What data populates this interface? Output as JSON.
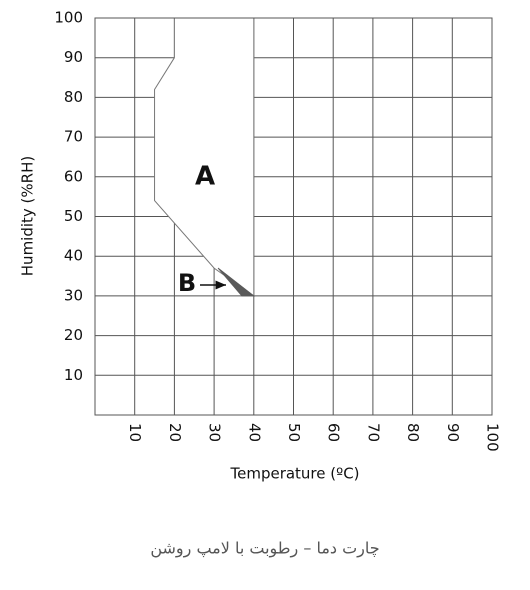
{
  "chart_data": {
    "type": "region",
    "xlabel": "Temperature (ºC)",
    "ylabel": "Humidity (%RH)",
    "xlim": [
      0,
      100
    ],
    "ylim": [
      0,
      100
    ],
    "xticks": [
      10,
      20,
      30,
      40,
      50,
      60,
      70,
      80,
      90,
      100
    ],
    "yticks": [
      10,
      20,
      30,
      40,
      50,
      60,
      70,
      80,
      90,
      100
    ],
    "grid": true,
    "regions": [
      {
        "name": "A",
        "color": "#ffffff",
        "x": [
          20,
          20,
          15,
          15,
          30,
          40,
          40
        ],
        "y": [
          100,
          90,
          82,
          54,
          37,
          30,
          100
        ]
      },
      {
        "name": "B",
        "color": "#5a5a5a",
        "x": [
          31,
          40,
          37
        ],
        "y": [
          37,
          30,
          30
        ]
      }
    ]
  },
  "caption": "چارت دما – رطوبت با لامپ روشن"
}
